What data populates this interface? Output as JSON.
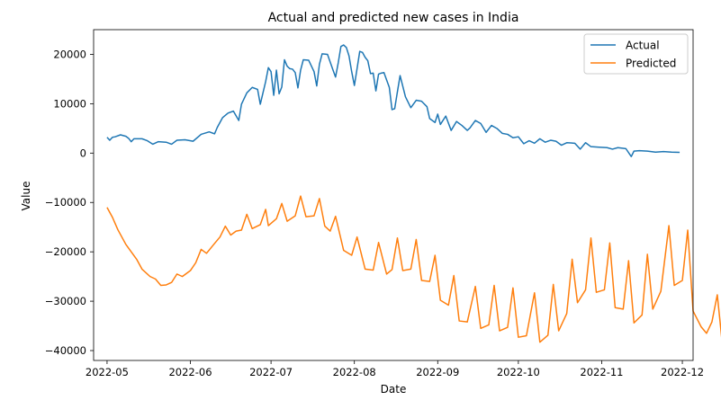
{
  "chart_data": {
    "type": "line",
    "title": "Actual and predicted new cases in India",
    "xlabel": "Date",
    "ylabel": "Value",
    "xlim": [
      "2022-04-26",
      "2022-12-05"
    ],
    "ylim": [
      -42000,
      25000
    ],
    "x_ticks": [
      "2022-05-01",
      "2022-06-01",
      "2022-07-01",
      "2022-08-01",
      "2022-09-01",
      "2022-10-01",
      "2022-11-01",
      "2022-12-01"
    ],
    "x_tick_labels": [
      "2022-05",
      "2022-06",
      "2022-07",
      "2022-08",
      "2022-09",
      "2022-10",
      "2022-11",
      "2022-12"
    ],
    "y_ticks": [
      20000,
      10000,
      0,
      -10000,
      -20000,
      -30000,
      -40000
    ],
    "y_tick_labels": [
      "20000",
      "10000",
      "0",
      "−10000",
      "−20000",
      "−30000",
      "−40000"
    ],
    "legend_position": "top-right",
    "series": [
      {
        "name": "Actual",
        "color": "#1f77b4",
        "points": [
          [
            "2022-05-01",
            3200
          ],
          [
            "2022-05-02",
            2600
          ],
          [
            "2022-05-03",
            3200
          ],
          [
            "2022-05-04",
            3300
          ],
          [
            "2022-05-06",
            3700
          ],
          [
            "2022-05-08",
            3400
          ],
          [
            "2022-05-09",
            3000
          ],
          [
            "2022-05-10",
            2300
          ],
          [
            "2022-05-11",
            2900
          ],
          [
            "2022-05-14",
            2900
          ],
          [
            "2022-05-16",
            2500
          ],
          [
            "2022-05-18",
            1800
          ],
          [
            "2022-05-20",
            2300
          ],
          [
            "2022-05-23",
            2200
          ],
          [
            "2022-05-25",
            1800
          ],
          [
            "2022-05-27",
            2600
          ],
          [
            "2022-05-30",
            2700
          ],
          [
            "2022-06-02",
            2400
          ],
          [
            "2022-06-05",
            3800
          ],
          [
            "2022-06-08",
            4300
          ],
          [
            "2022-06-10",
            3900
          ],
          [
            "2022-06-11",
            5200
          ],
          [
            "2022-06-13",
            7200
          ],
          [
            "2022-06-15",
            8100
          ],
          [
            "2022-06-17",
            8500
          ],
          [
            "2022-06-19",
            6600
          ],
          [
            "2022-06-20",
            9900
          ],
          [
            "2022-06-22",
            12200
          ],
          [
            "2022-06-24",
            13300
          ],
          [
            "2022-06-26",
            12900
          ],
          [
            "2022-06-27",
            9900
          ],
          [
            "2022-06-28",
            12200
          ],
          [
            "2022-06-29",
            14500
          ],
          [
            "2022-06-30",
            17300
          ],
          [
            "2022-07-01",
            16500
          ],
          [
            "2022-07-02",
            11700
          ],
          [
            "2022-07-03",
            16800
          ],
          [
            "2022-07-04",
            12000
          ],
          [
            "2022-07-05",
            13400
          ],
          [
            "2022-07-06",
            18900
          ],
          [
            "2022-07-07",
            17600
          ],
          [
            "2022-07-08",
            17100
          ],
          [
            "2022-07-09",
            17000
          ],
          [
            "2022-07-10",
            16300
          ],
          [
            "2022-07-11",
            13200
          ],
          [
            "2022-07-12",
            16800
          ],
          [
            "2022-07-13",
            18900
          ],
          [
            "2022-07-15",
            18800
          ],
          [
            "2022-07-17",
            16500
          ],
          [
            "2022-07-18",
            13600
          ],
          [
            "2022-07-19",
            18000
          ],
          [
            "2022-07-20",
            20100
          ],
          [
            "2022-07-22",
            20000
          ],
          [
            "2022-07-24",
            16900
          ],
          [
            "2022-07-25",
            15400
          ],
          [
            "2022-07-26",
            18300
          ],
          [
            "2022-07-27",
            21600
          ],
          [
            "2022-07-28",
            21900
          ],
          [
            "2022-07-29",
            21400
          ],
          [
            "2022-07-30",
            19700
          ],
          [
            "2022-07-31",
            16500
          ],
          [
            "2022-08-01",
            13700
          ],
          [
            "2022-08-02",
            17100
          ],
          [
            "2022-08-03",
            20600
          ],
          [
            "2022-08-04",
            20400
          ],
          [
            "2022-08-05",
            19400
          ],
          [
            "2022-08-06",
            18700
          ],
          [
            "2022-08-07",
            16100
          ],
          [
            "2022-08-08",
            16200
          ],
          [
            "2022-08-09",
            12600
          ],
          [
            "2022-08-10",
            16000
          ],
          [
            "2022-08-11",
            16200
          ],
          [
            "2022-08-12",
            16300
          ],
          [
            "2022-08-13",
            14800
          ],
          [
            "2022-08-14",
            13300
          ],
          [
            "2022-08-15",
            8800
          ],
          [
            "2022-08-16",
            9000
          ],
          [
            "2022-08-17",
            12400
          ],
          [
            "2022-08-18",
            15700
          ],
          [
            "2022-08-20",
            11400
          ],
          [
            "2022-08-22",
            9200
          ],
          [
            "2022-08-24",
            10700
          ],
          [
            "2022-08-26",
            10500
          ],
          [
            "2022-08-28",
            9400
          ],
          [
            "2022-08-29",
            7000
          ],
          [
            "2022-08-31",
            6200
          ],
          [
            "2022-09-01",
            7900
          ],
          [
            "2022-09-02",
            5800
          ],
          [
            "2022-09-04",
            7500
          ],
          [
            "2022-09-06",
            4600
          ],
          [
            "2022-09-08",
            6400
          ],
          [
            "2022-09-10",
            5600
          ],
          [
            "2022-09-12",
            4600
          ],
          [
            "2022-09-13",
            5100
          ],
          [
            "2022-09-15",
            6600
          ],
          [
            "2022-09-17",
            6000
          ],
          [
            "2022-09-19",
            4200
          ],
          [
            "2022-09-21",
            5600
          ],
          [
            "2022-09-23",
            5000
          ],
          [
            "2022-09-25",
            4000
          ],
          [
            "2022-09-27",
            3800
          ],
          [
            "2022-09-29",
            3100
          ],
          [
            "2022-10-01",
            3300
          ],
          [
            "2022-10-03",
            1900
          ],
          [
            "2022-10-05",
            2500
          ],
          [
            "2022-10-07",
            2000
          ],
          [
            "2022-10-09",
            2900
          ],
          [
            "2022-10-11",
            2200
          ],
          [
            "2022-10-13",
            2600
          ],
          [
            "2022-10-15",
            2400
          ],
          [
            "2022-10-17",
            1600
          ],
          [
            "2022-10-19",
            2100
          ],
          [
            "2022-10-22",
            2000
          ],
          [
            "2022-10-24",
            800
          ],
          [
            "2022-10-26",
            2100
          ],
          [
            "2022-10-28",
            1300
          ],
          [
            "2022-10-31",
            1200
          ],
          [
            "2022-11-03",
            1100
          ],
          [
            "2022-11-05",
            800
          ],
          [
            "2022-11-07",
            1100
          ],
          [
            "2022-11-10",
            900
          ],
          [
            "2022-11-12",
            -700
          ],
          [
            "2022-11-13",
            400
          ],
          [
            "2022-11-15",
            500
          ],
          [
            "2022-11-18",
            400
          ],
          [
            "2022-11-21",
            200
          ],
          [
            "2022-11-24",
            300
          ],
          [
            "2022-11-27",
            200
          ],
          [
            "2022-11-30",
            150
          ]
        ]
      },
      {
        "name": "Predicted",
        "color": "#ff7f0e",
        "points": [
          [
            "2022-05-01",
            -11000
          ],
          [
            "2022-05-03",
            -13000
          ],
          [
            "2022-05-05",
            -15500
          ],
          [
            "2022-05-08",
            -18500
          ],
          [
            "2022-05-10",
            -20000
          ],
          [
            "2022-05-12",
            -21500
          ],
          [
            "2022-05-14",
            -23500
          ],
          [
            "2022-05-17",
            -25000
          ],
          [
            "2022-05-19",
            -25500
          ],
          [
            "2022-05-21",
            -26800
          ],
          [
            "2022-05-23",
            -26700
          ],
          [
            "2022-05-25",
            -26200
          ],
          [
            "2022-05-27",
            -24500
          ],
          [
            "2022-05-29",
            -25000
          ],
          [
            "2022-06-01",
            -23800
          ],
          [
            "2022-06-03",
            -22200
          ],
          [
            "2022-06-05",
            -19500
          ],
          [
            "2022-06-07",
            -20300
          ],
          [
            "2022-06-10",
            -18300
          ],
          [
            "2022-06-12",
            -17000
          ],
          [
            "2022-06-14",
            -14800
          ],
          [
            "2022-06-16",
            -16600
          ],
          [
            "2022-06-18",
            -15800
          ],
          [
            "2022-06-20",
            -15600
          ],
          [
            "2022-06-22",
            -12400
          ],
          [
            "2022-06-24",
            -15300
          ],
          [
            "2022-06-27",
            -14500
          ],
          [
            "2022-06-29",
            -11400
          ],
          [
            "2022-06-30",
            -14700
          ],
          [
            "2022-07-03",
            -13300
          ],
          [
            "2022-07-05",
            -10200
          ],
          [
            "2022-07-07",
            -13800
          ],
          [
            "2022-07-10",
            -12700
          ],
          [
            "2022-07-12",
            -8700
          ],
          [
            "2022-07-14",
            -12900
          ],
          [
            "2022-07-17",
            -12700
          ],
          [
            "2022-07-19",
            -9200
          ],
          [
            "2022-07-21",
            -14800
          ],
          [
            "2022-07-23",
            -15800
          ],
          [
            "2022-07-25",
            -12800
          ],
          [
            "2022-07-28",
            -19700
          ],
          [
            "2022-07-31",
            -20700
          ],
          [
            "2022-08-02",
            -17000
          ],
          [
            "2022-08-05",
            -23500
          ],
          [
            "2022-08-08",
            -23700
          ],
          [
            "2022-08-10",
            -18100
          ],
          [
            "2022-08-13",
            -24500
          ],
          [
            "2022-08-15",
            -23600
          ],
          [
            "2022-08-17",
            -17200
          ],
          [
            "2022-08-19",
            -23800
          ],
          [
            "2022-08-22",
            -23500
          ],
          [
            "2022-08-24",
            -17500
          ],
          [
            "2022-08-26",
            -25800
          ],
          [
            "2022-08-29",
            -26000
          ],
          [
            "2022-08-31",
            -20700
          ],
          [
            "2022-09-02",
            -29800
          ],
          [
            "2022-09-05",
            -30800
          ],
          [
            "2022-09-07",
            -24800
          ],
          [
            "2022-09-09",
            -34000
          ],
          [
            "2022-09-12",
            -34200
          ],
          [
            "2022-09-15",
            -27000
          ],
          [
            "2022-09-17",
            -35500
          ],
          [
            "2022-09-20",
            -34800
          ],
          [
            "2022-09-22",
            -26800
          ],
          [
            "2022-09-24",
            -36000
          ],
          [
            "2022-09-27",
            -35300
          ],
          [
            "2022-09-29",
            -27300
          ],
          [
            "2022-10-01",
            -37300
          ],
          [
            "2022-10-04",
            -37000
          ],
          [
            "2022-10-07",
            -28300
          ],
          [
            "2022-10-09",
            -38300
          ],
          [
            "2022-10-12",
            -36900
          ],
          [
            "2022-10-14",
            -26600
          ],
          [
            "2022-10-16",
            -36000
          ],
          [
            "2022-10-19",
            -32500
          ],
          [
            "2022-10-21",
            -21500
          ],
          [
            "2022-10-23",
            -30300
          ],
          [
            "2022-10-26",
            -27700
          ],
          [
            "2022-10-28",
            -17200
          ],
          [
            "2022-10-30",
            -28200
          ],
          [
            "2022-11-02",
            -27700
          ],
          [
            "2022-11-04",
            -18200
          ],
          [
            "2022-11-06",
            -31300
          ],
          [
            "2022-11-09",
            -31600
          ],
          [
            "2022-11-11",
            -21800
          ],
          [
            "2022-11-13",
            -34400
          ],
          [
            "2022-11-16",
            -32800
          ],
          [
            "2022-11-18",
            -20500
          ],
          [
            "2022-11-20",
            -31600
          ],
          [
            "2022-11-23",
            -28000
          ],
          [
            "2022-11-26",
            -14700
          ],
          [
            "2022-11-28",
            -26800
          ],
          [
            "2022-12-01",
            -25800
          ],
          [
            "2022-12-03",
            -15600
          ],
          [
            "2022-12-05",
            -32000
          ],
          [
            "2022-12-08",
            -35200
          ],
          [
            "2022-12-10",
            -36500
          ],
          [
            "2022-12-12",
            -34200
          ],
          [
            "2022-12-14",
            -28700
          ],
          [
            "2022-12-16",
            -39300
          ]
        ]
      }
    ]
  }
}
